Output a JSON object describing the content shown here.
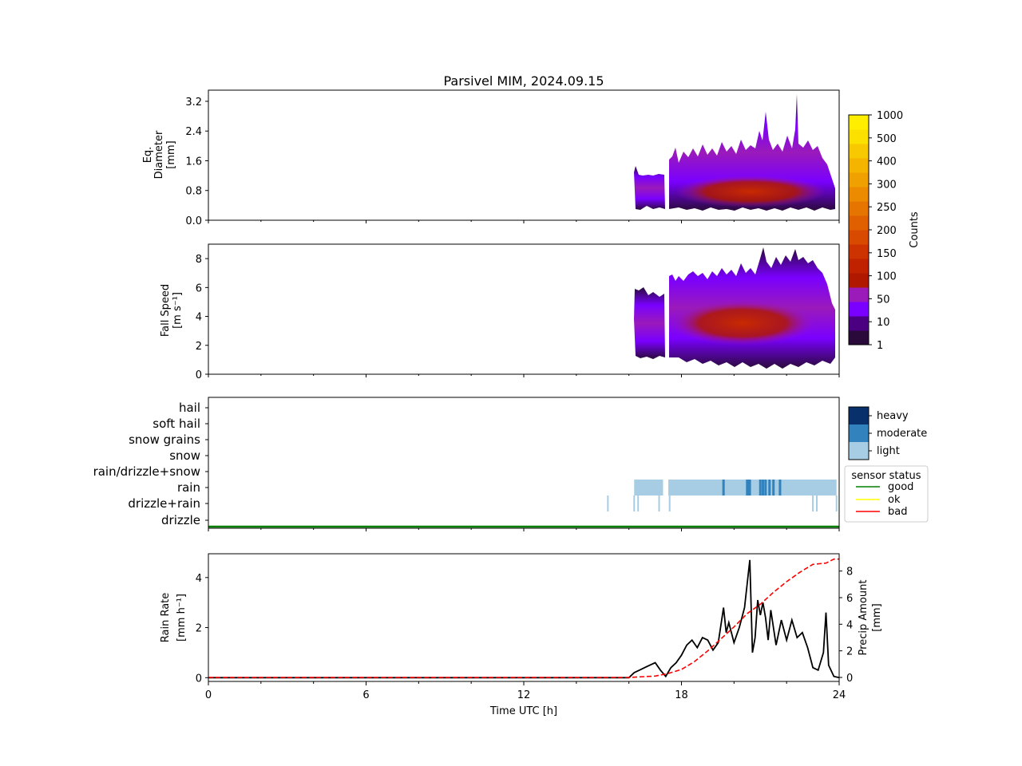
{
  "figure": {
    "title": "Parsivel MIM, 2024.09.15"
  },
  "chart_data": [
    {
      "type": "heatmap",
      "panel": "diameter",
      "ylabel_lines": [
        "Eq.",
        "Diameter",
        "[mm]"
      ],
      "ylim": [
        0,
        3.5
      ],
      "yticks": [
        "0.0",
        "0.8",
        "1.6",
        "2.4",
        "3.2"
      ],
      "ytick_values": [
        0,
        0.8,
        1.6,
        2.4,
        3.2
      ],
      "xlim": [
        0,
        24
      ],
      "data_periods_h": [
        [
          16.2,
          17.35
        ],
        [
          17.5,
          23.9
        ]
      ],
      "colorbar": {
        "label": "Counts",
        "ticks": [
          "1",
          "10",
          "50",
          "100",
          "150",
          "200",
          "250",
          "300",
          "400",
          "500",
          "1000"
        ]
      }
    },
    {
      "type": "heatmap",
      "panel": "fall_speed",
      "ylabel_lines": [
        "Fall Speed",
        "[m s⁻¹]"
      ],
      "ylim": [
        0,
        9
      ],
      "yticks": [
        "0",
        "2",
        "4",
        "6",
        "8"
      ],
      "ytick_values": [
        0,
        2,
        4,
        6,
        8
      ],
      "xlim": [
        0,
        24
      ],
      "data_periods_h": [
        [
          16.2,
          17.35
        ],
        [
          17.5,
          23.9
        ]
      ]
    },
    {
      "type": "heatmap",
      "panel": "precipitation_type",
      "categories": [
        "hail",
        "soft hail",
        "snow grains",
        "snow",
        "rain/drizzle+snow",
        "rain",
        "drizzle+rain",
        "drizzle"
      ],
      "intensity_legend": [
        "heavy",
        "moderate",
        "light"
      ],
      "intensity_colors": {
        "heavy": "#08306b",
        "moderate": "#3182bd",
        "light": "#a6cde4"
      },
      "rain_light_periods_h": [
        [
          16.2,
          17.3
        ],
        [
          17.5,
          23.9
        ]
      ],
      "rain_moderate_marks_h": [
        19.6,
        20.5,
        20.55,
        20.6,
        21.0,
        21.1,
        21.2,
        21.35,
        21.5,
        21.75
      ],
      "drizzle_rain_marks_h": [
        15.2,
        16.2,
        16.35,
        17.15,
        17.55,
        23.0,
        23.15,
        23.9
      ],
      "status_legend": {
        "title": "sensor status",
        "items": [
          {
            "label": "good",
            "color": "#008000"
          },
          {
            "label": "ok",
            "color": "#ffff00"
          },
          {
            "label": "bad",
            "color": "#ff0000"
          }
        ]
      },
      "status_good_range_h": [
        0,
        24
      ]
    },
    {
      "type": "line",
      "panel": "rain_rate",
      "xlabel": "Time UTC [h]",
      "xticks": [
        "0",
        "6",
        "12",
        "18",
        "24"
      ],
      "xtick_values": [
        0,
        6,
        12,
        18,
        24
      ],
      "xlim": [
        0,
        24
      ],
      "ylabel_lines": [
        "Rain Rate",
        "[mm h⁻¹]"
      ],
      "ylim": [
        -0.15,
        4.95
      ],
      "yticks": [
        "0",
        "2",
        "4"
      ],
      "ytick_values": [
        0,
        2,
        4
      ],
      "y2label_lines": [
        "Precip Amount",
        "[mm]"
      ],
      "y2lim": [
        -0.3,
        9.3
      ],
      "y2ticks": [
        "0",
        "2",
        "4",
        "6",
        "8"
      ],
      "y2tick_values": [
        0,
        2,
        4,
        6,
        8
      ],
      "series": [
        {
          "axis": "left",
          "color": "#000000",
          "dash": "solid",
          "x": [
            0,
            16.0,
            16.2,
            16.4,
            16.6,
            16.8,
            17.0,
            17.2,
            17.4,
            17.6,
            17.8,
            18.0,
            18.2,
            18.4,
            18.6,
            18.8,
            19.0,
            19.2,
            19.4,
            19.6,
            19.7,
            19.8,
            20.0,
            20.2,
            20.4,
            20.6,
            20.7,
            20.8,
            20.9,
            21.0,
            21.1,
            21.2,
            21.3,
            21.4,
            21.6,
            21.8,
            22.0,
            22.2,
            22.4,
            22.6,
            22.8,
            23.0,
            23.2,
            23.4,
            23.5,
            23.6,
            23.8,
            24.0
          ],
          "y": [
            0,
            0,
            0.2,
            0.3,
            0.4,
            0.5,
            0.6,
            0.3,
            0.05,
            0.4,
            0.6,
            0.9,
            1.3,
            1.5,
            1.2,
            1.6,
            1.5,
            1.1,
            1.4,
            2.8,
            1.8,
            2.2,
            1.4,
            2.0,
            2.8,
            4.7,
            1.0,
            1.6,
            3.1,
            2.5,
            3.0,
            2.4,
            1.5,
            2.7,
            1.3,
            2.3,
            1.5,
            2.3,
            1.6,
            1.8,
            1.2,
            0.4,
            0.3,
            1.0,
            2.6,
            0.5,
            0.05,
            0
          ]
        },
        {
          "axis": "right",
          "color": "#ff0000",
          "dash": "dashed",
          "x": [
            0,
            16.0,
            17.0,
            17.5,
            18.0,
            18.5,
            19.0,
            19.5,
            20.0,
            20.5,
            21.0,
            21.5,
            22.0,
            22.5,
            23.0,
            23.5,
            23.8,
            24.0
          ],
          "y": [
            0,
            0,
            0.1,
            0.3,
            0.6,
            1.2,
            2.0,
            2.9,
            3.8,
            4.8,
            5.5,
            6.4,
            7.2,
            7.9,
            8.5,
            8.6,
            8.9,
            8.9
          ]
        }
      ]
    }
  ]
}
